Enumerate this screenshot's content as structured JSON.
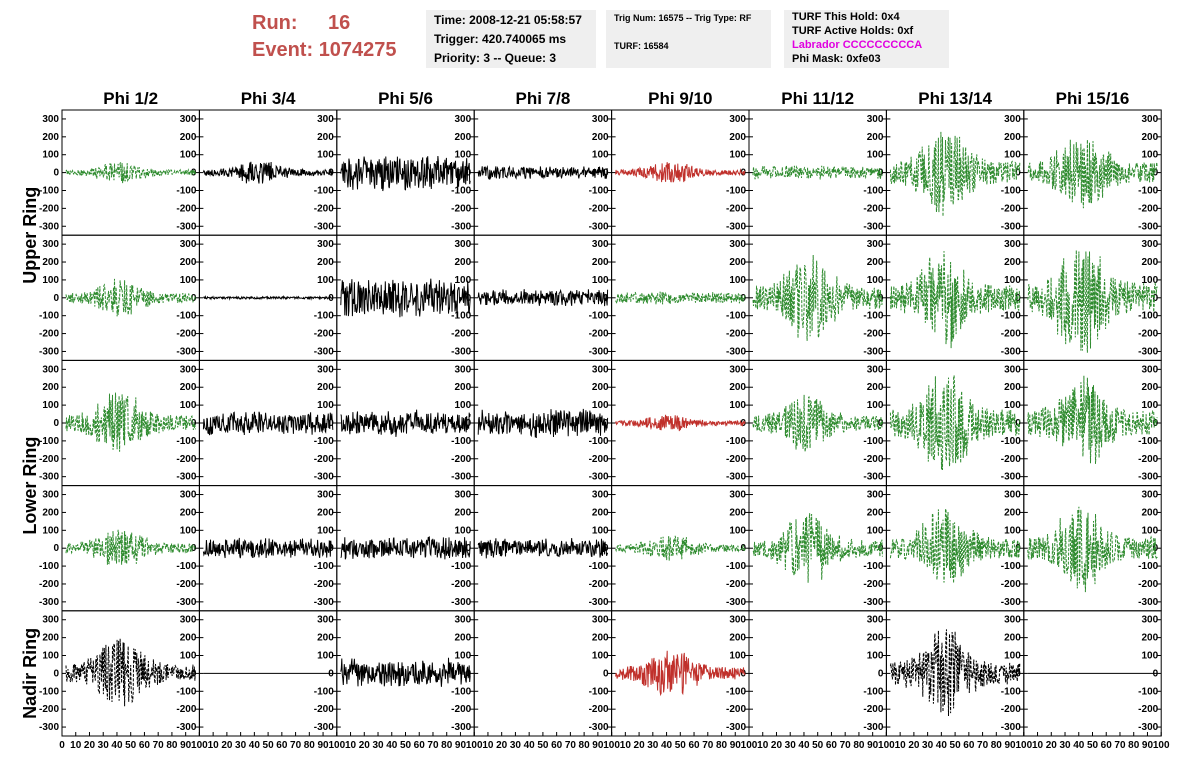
{
  "header": {
    "run_label": "Run:",
    "run_value": "16",
    "event_label": "Event:",
    "event_value": "1074275",
    "time": "Time: 2008-12-21 05:58:57",
    "trigger": "Trigger: 420.740065 ms",
    "priority": "Priority: 3 -- Queue: 3",
    "trig_num": "Trig Num: 16575 -- Trig Type: RF",
    "turf": "TURF: 16584",
    "turf_hold": "TURF This Hold: 0x4",
    "turf_active": "TURF Active Holds: 0xf",
    "labrador": "Labrador CCCCCCCCCA",
    "phi_mask": "Phi Mask: 0xfe03"
  },
  "colors": {
    "green": "#2e8b2e",
    "black": "#000000",
    "red": "#c0302b",
    "magenta": "#e000e0",
    "header_red": "#c0504d"
  },
  "chart_data": {
    "type": "line",
    "columns": [
      "Phi 1/2",
      "Phi 3/4",
      "Phi 5/6",
      "Phi 7/8",
      "Phi 9/10",
      "Phi 11/12",
      "Phi 13/14",
      "Phi 15/16"
    ],
    "rows": [
      "Upper Ring",
      "Lower Ring",
      "Nadir Ring"
    ],
    "ylim": [
      -350,
      350
    ],
    "yticks": [
      -300,
      -200,
      -100,
      0,
      100,
      200,
      300
    ],
    "xlim": [
      0,
      100
    ],
    "xticks": [
      0,
      10,
      20,
      30,
      40,
      50,
      60,
      70,
      80,
      90,
      100
    ],
    "panels": [
      [
        {
          "c": "green",
          "d": "dash",
          "amp": 60,
          "env": "mid"
        },
        {
          "c": "black",
          "d": "solid",
          "amp": 70,
          "env": "mid"
        },
        {
          "c": "black",
          "d": "solid",
          "amp": 110,
          "env": "flat"
        },
        {
          "c": "black",
          "d": "solid",
          "amp": 40,
          "env": "flat"
        },
        {
          "c": "red",
          "d": "solid",
          "amp": 60,
          "env": "mid"
        },
        {
          "c": "green",
          "d": "dash",
          "amp": 40,
          "env": "flat"
        },
        {
          "c": "green",
          "d": "dash",
          "amp": 250,
          "env": "mid"
        },
        {
          "c": "green",
          "d": "dash",
          "amp": 230,
          "env": "mid"
        }
      ],
      [
        {
          "c": "green",
          "d": "dash",
          "amp": 110,
          "env": "mid"
        },
        {
          "c": "black",
          "d": "solid",
          "amp": 8,
          "env": "flat"
        },
        {
          "c": "black",
          "d": "solid",
          "amp": 120,
          "env": "flat"
        },
        {
          "c": "black",
          "d": "solid",
          "amp": 50,
          "env": "flat"
        },
        {
          "c": "green",
          "d": "dash",
          "amp": 40,
          "env": "flat"
        },
        {
          "c": "green",
          "d": "dash",
          "amp": 260,
          "env": "mid"
        },
        {
          "c": "green",
          "d": "dash",
          "amp": 290,
          "env": "mid"
        },
        {
          "c": "green",
          "d": "dash",
          "amp": 340,
          "env": "mid"
        }
      ],
      [
        {
          "c": "green",
          "d": "dash",
          "amp": 180,
          "env": "mid"
        },
        {
          "c": "black",
          "d": "solid",
          "amp": 70,
          "env": "flat"
        },
        {
          "c": "black",
          "d": "solid",
          "amp": 80,
          "env": "flat"
        },
        {
          "c": "black",
          "d": "solid",
          "amp": 90,
          "env": "flat"
        },
        {
          "c": "red",
          "d": "solid",
          "amp": 50,
          "env": "mid"
        },
        {
          "c": "green",
          "d": "dash",
          "amp": 170,
          "env": "mid"
        },
        {
          "c": "green",
          "d": "dash",
          "amp": 300,
          "env": "mid"
        },
        {
          "c": "green",
          "d": "dash",
          "amp": 270,
          "env": "mid"
        }
      ],
      [
        {
          "c": "green",
          "d": "dash",
          "amp": 110,
          "env": "mid"
        },
        {
          "c": "black",
          "d": "solid",
          "amp": 60,
          "env": "flat"
        },
        {
          "c": "black",
          "d": "solid",
          "amp": 70,
          "env": "flat"
        },
        {
          "c": "black",
          "d": "solid",
          "amp": 60,
          "env": "flat"
        },
        {
          "c": "green",
          "d": "dash",
          "amp": 80,
          "env": "mid"
        },
        {
          "c": "green",
          "d": "dash",
          "amp": 200,
          "env": "mid"
        },
        {
          "c": "green",
          "d": "dash",
          "amp": 230,
          "env": "mid"
        },
        {
          "c": "green",
          "d": "dash",
          "amp": 250,
          "env": "mid"
        }
      ],
      [
        {
          "c": "black",
          "d": "dash",
          "amp": 200,
          "env": "mid"
        },
        {
          "c": "black",
          "d": "solid",
          "amp": 0,
          "env": "flat"
        },
        {
          "c": "black",
          "d": "solid",
          "amp": 90,
          "env": "flat"
        },
        {
          "c": "black",
          "d": "solid",
          "amp": 0,
          "env": "none"
        },
        {
          "c": "red",
          "d": "solid",
          "amp": 140,
          "env": "mid"
        },
        {
          "c": "black",
          "d": "solid",
          "amp": 0,
          "env": "none"
        },
        {
          "c": "black",
          "d": "dash",
          "amp": 250,
          "env": "mid"
        },
        {
          "c": "black",
          "d": "solid",
          "amp": 0,
          "env": "flat"
        }
      ]
    ]
  }
}
